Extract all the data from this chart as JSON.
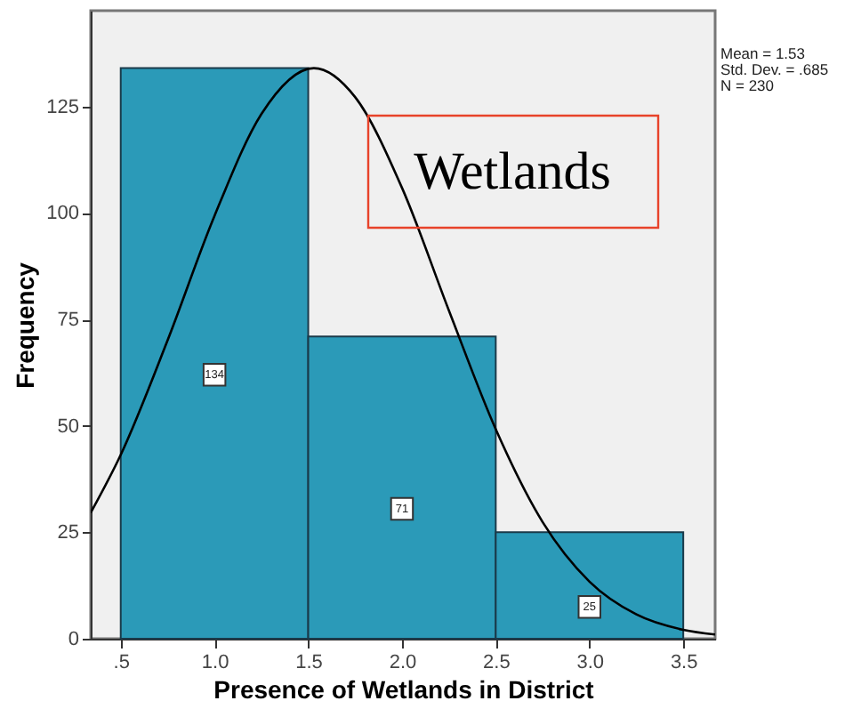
{
  "chart_data": {
    "type": "histogram",
    "xlabel": "Presence of Wetlands in District",
    "ylabel": "Frequency",
    "series": [
      {
        "bins": [
          0.5,
          1.5,
          2.5,
          3.5
        ],
        "values": [
          134,
          71,
          25
        ],
        "value_labels": [
          "134",
          "71",
          "25"
        ],
        "color": "#2b9ab8"
      },
      {
        "type": "line",
        "color": "#000000",
        "x": [
          0.34,
          0.5,
          0.75,
          1.0,
          1.25,
          1.53,
          1.75,
          2.0,
          2.25,
          2.5,
          2.75,
          3.0,
          3.25,
          3.5,
          3.67
        ],
        "values": [
          29.6,
          43.2,
          70.1,
          99.3,
          123.2,
          134,
          127.2,
          105.9,
          77.1,
          49.2,
          27.4,
          13.4,
          5.7,
          2.1,
          1.0
        ]
      }
    ],
    "xlim": [
      0.34,
      3.67
    ],
    "ylim": [
      0,
      147.5
    ],
    "xticks": [
      {
        "value": 0.5,
        "label": ".5"
      },
      {
        "value": 1.0,
        "label": "1.0"
      },
      {
        "value": 1.5,
        "label": "1.5"
      },
      {
        "value": 2.0,
        "label": "2.0"
      },
      {
        "value": 2.5,
        "label": "2.5"
      },
      {
        "value": 3.0,
        "label": "3.0"
      },
      {
        "value": 3.5,
        "label": "3.5"
      }
    ],
    "yticks": [
      0,
      25,
      50,
      75,
      100,
      125
    ],
    "grid": false,
    "annotations": [
      "Mean = 1.53\nStd. Dev. = .685\nN = 230",
      "Wetlands"
    ]
  }
}
